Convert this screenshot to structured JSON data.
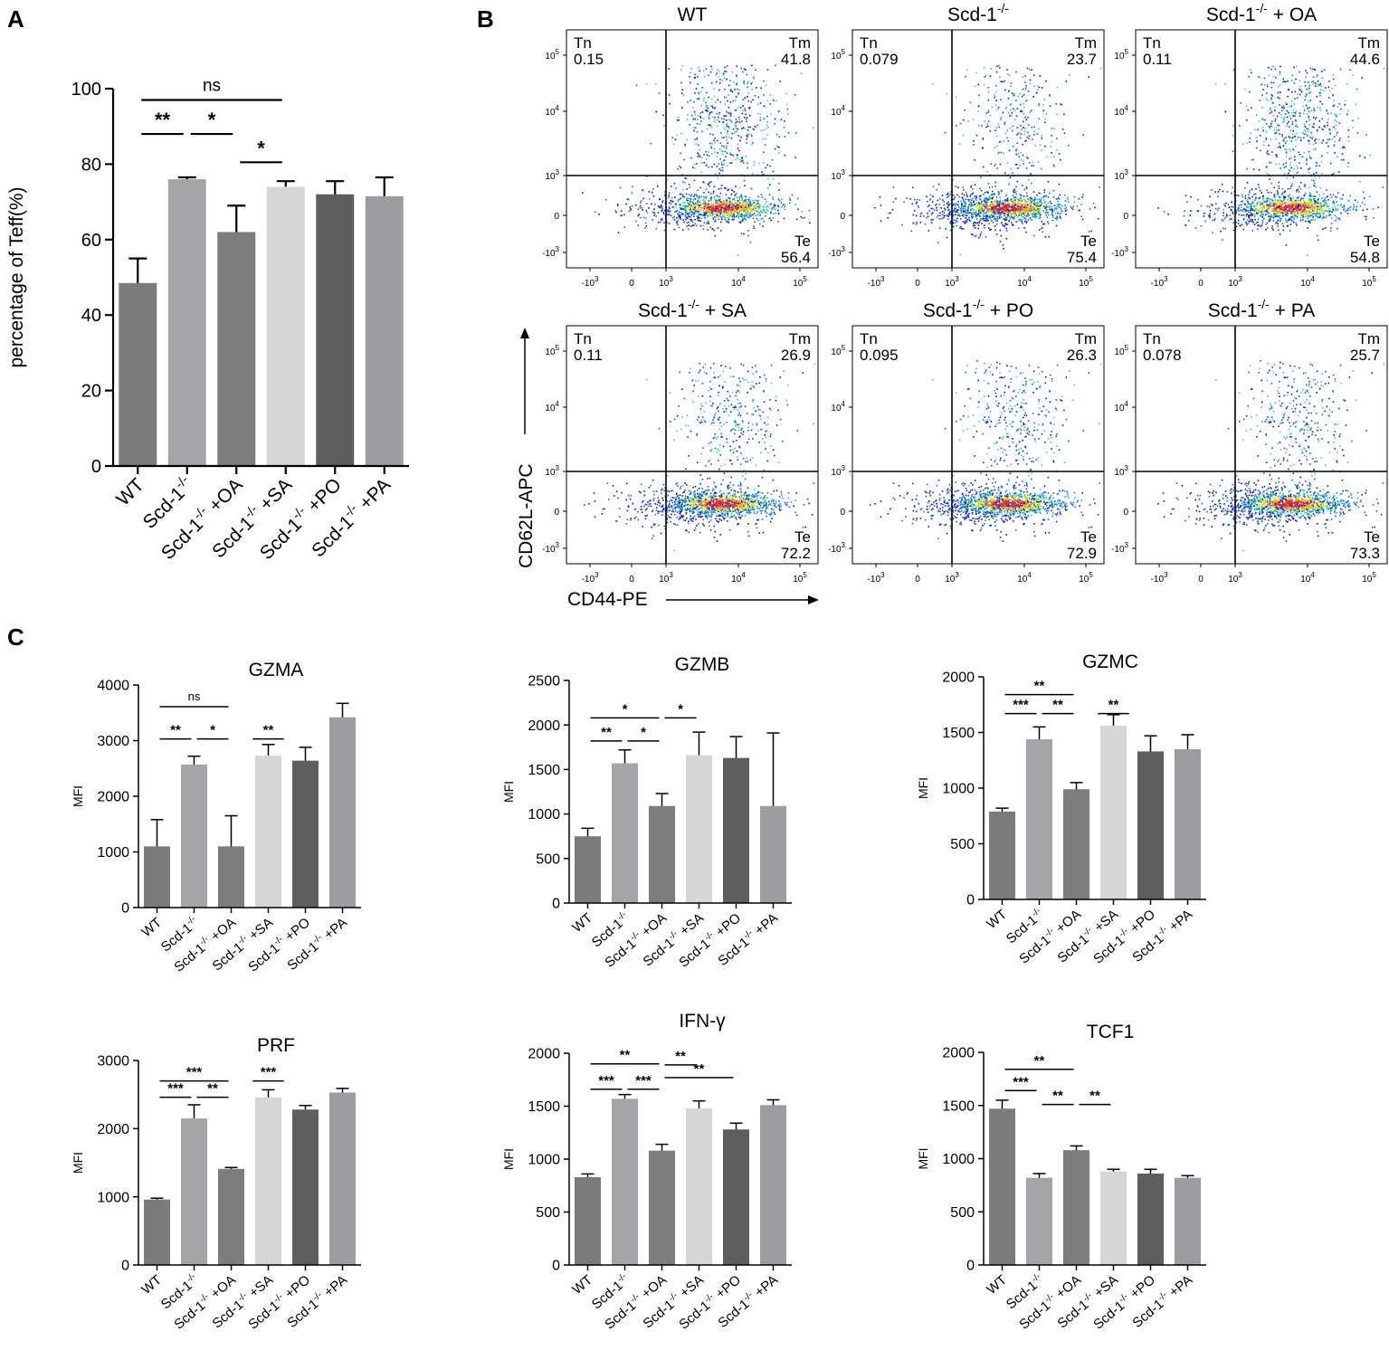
{
  "colors": {
    "wt": "#7b7b7b",
    "ko": "#a5a5a7",
    "oa": "#7d7d7d",
    "sa": "#d6d6d6",
    "po": "#5e5e5e",
    "pa": "#9d9da1",
    "axis": "#000000"
  },
  "panel_a": {
    "letter": "A",
    "chart_data": {
      "type": "bar",
      "title": "",
      "ylabel": "percentage of Teff(%)",
      "ylim": [
        0,
        100
      ],
      "yticks": [
        0,
        20,
        40,
        60,
        80,
        100
      ],
      "categories": [
        "WT",
        "Scd-1-/-",
        "Scd-1-/- +OA",
        "Scd-1-/- +SA",
        "Scd-1-/- +PO",
        "Scd-1-/- +PA"
      ],
      "values": [
        48.5,
        76,
        62,
        74,
        72,
        71.5
      ],
      "errors": [
        6.5,
        0.5,
        7,
        1.5,
        3.5,
        5
      ],
      "significance": [
        {
          "from": 0,
          "to": 3,
          "label": "ns",
          "y": 97
        },
        {
          "from": 0,
          "to": 1,
          "label": "**",
          "y": 88
        },
        {
          "from": 1,
          "to": 2,
          "label": "*",
          "y": 88
        },
        {
          "from": 2,
          "to": 3,
          "label": "*",
          "y": 80.5
        }
      ]
    }
  },
  "panel_b": {
    "letter": "B",
    "x_axis_label": "CD44-PE",
    "y_axis_label": "CD62L-APC",
    "y_tick_labels": [
      "10^5",
      "10^4",
      "10^3",
      "0",
      "-10^3"
    ],
    "x_tick_labels": [
      "-10^3",
      "0",
      "10^3",
      "10^4",
      "10^5"
    ],
    "plots": [
      {
        "title": "WT",
        "tn": "0.15",
        "tm": "41.8",
        "te": "56.4",
        "tn_label": "Tn",
        "tm_label": "Tm",
        "te_label": "Te"
      },
      {
        "title": "Scd-1-/-",
        "tn": "0.079",
        "tm": "23.7",
        "te": "75.4",
        "tn_label": "Tn",
        "tm_label": "Tm",
        "te_label": "Te"
      },
      {
        "title": "Scd-1-/- + OA",
        "tn": "0.11",
        "tm": "44.6",
        "te": "54.8",
        "tn_label": "Tn",
        "tm_label": "Tm",
        "te_label": "Te"
      },
      {
        "title": "Scd-1-/- + SA",
        "tn": "0.11",
        "tm": "26.9",
        "te": "72.2",
        "tn_label": "Tn",
        "tm_label": "Tm",
        "te_label": "Te"
      },
      {
        "title": "Scd-1-/- + PO",
        "tn": "0.095",
        "tm": "26.3",
        "te": "72.9",
        "tn_label": "Tn",
        "tm_label": "Tm",
        "te_label": "Te"
      },
      {
        "title": "Scd-1-/- + PA",
        "tn": "0.078",
        "tm": "25.7",
        "te": "73.3",
        "tn_label": "Tn",
        "tm_label": "Tm",
        "te_label": "Te"
      }
    ]
  },
  "panel_c": {
    "letter": "C",
    "chart_data": [
      {
        "type": "bar",
        "title": "GZMA",
        "ylabel": "MFI",
        "ylim": [
          0,
          4000
        ],
        "yticks": [
          0,
          1000,
          2000,
          3000,
          4000
        ],
        "categories": [
          "WT",
          "Scd-1-/-",
          "Scd-1-/- +OA",
          "Scd-1-/- +SA",
          "Scd-1-/- +PO",
          "Scd-1-/- +PA"
        ],
        "values": [
          1100,
          2570,
          1100,
          2730,
          2640,
          3420
        ],
        "errors": [
          480,
          150,
          550,
          200,
          240,
          250
        ],
        "significance": [
          {
            "from": 0,
            "to": 2,
            "label": "ns",
            "y": 3610
          },
          {
            "from": 0,
            "to": 1,
            "label": "**",
            "y": 3030
          },
          {
            "from": 1,
            "to": 2,
            "label": "*",
            "y": 3030
          },
          {
            "from": 3,
            "to": 3,
            "label": "**",
            "y": 3030
          }
        ]
      },
      {
        "type": "bar",
        "title": "GZMB",
        "ylabel": "MFI",
        "ylim": [
          0,
          2500
        ],
        "yticks": [
          0,
          500,
          1000,
          1500,
          2000,
          2500
        ],
        "categories": [
          "WT",
          "Scd-1-/-",
          "Scd-1-/- +OA",
          "Scd-1-/- +SA",
          "Scd-1-/- +PO",
          "Scd-1-/- +PA"
        ],
        "values": [
          750,
          1570,
          1090,
          1660,
          1630,
          1090
        ],
        "errors": [
          90,
          150,
          140,
          260,
          240,
          820
        ],
        "significance": [
          {
            "from": 0,
            "to": 2,
            "label": "*",
            "y": 2080
          },
          {
            "from": 0,
            "to": 1,
            "label": "**",
            "y": 1820
          },
          {
            "from": 1,
            "to": 2,
            "label": "*",
            "y": 1820
          },
          {
            "from": 2,
            "to": 3,
            "label": "*",
            "y": 2080
          }
        ]
      },
      {
        "type": "bar",
        "title": "GZMC",
        "ylabel": "MFI",
        "ylim": [
          0,
          2000
        ],
        "yticks": [
          0,
          500,
          1000,
          1500,
          2000
        ],
        "categories": [
          "WT",
          "Scd-1-/-",
          "Scd-1-/- +OA",
          "Scd-1-/- +SA",
          "Scd-1-/- +PO",
          "Scd-1-/- +PA"
        ],
        "values": [
          790,
          1440,
          990,
          1560,
          1330,
          1350
        ],
        "errors": [
          30,
          110,
          60,
          100,
          140,
          130
        ],
        "significance": [
          {
            "from": 0,
            "to": 2,
            "label": "**",
            "y": 1840
          },
          {
            "from": 0,
            "to": 1,
            "label": "***",
            "y": 1670
          },
          {
            "from": 1,
            "to": 2,
            "label": "**",
            "y": 1670
          },
          {
            "from": 3,
            "to": 3,
            "label": "**",
            "y": 1670
          }
        ]
      },
      {
        "type": "bar",
        "title": "PRF",
        "ylabel": "MFI",
        "ylim": [
          0,
          3000
        ],
        "yticks": [
          0,
          1000,
          2000,
          3000
        ],
        "categories": [
          "WT",
          "Scd-1-/-",
          "Scd-1-/- +OA",
          "Scd-1-/- +SA",
          "Scd-1-/- +PO",
          "Scd-1-/- +PA"
        ],
        "values": [
          960,
          2150,
          1410,
          2460,
          2280,
          2530
        ],
        "errors": [
          20,
          200,
          20,
          110,
          60,
          60
        ],
        "significance": [
          {
            "from": 0,
            "to": 2,
            "label": "***",
            "y": 2700
          },
          {
            "from": 0,
            "to": 1,
            "label": "***",
            "y": 2460
          },
          {
            "from": 1,
            "to": 2,
            "label": "**",
            "y": 2460
          },
          {
            "from": 3,
            "to": 3,
            "label": "***",
            "y": 2700
          }
        ]
      },
      {
        "type": "bar",
        "title": "IFN-γ",
        "ylabel": "MFI",
        "ylim": [
          0,
          2000
        ],
        "yticks": [
          0,
          500,
          1000,
          1500,
          2000
        ],
        "categories": [
          "WT",
          "Scd-1-/-",
          "Scd-1-/- +OA",
          "Scd-1-/- +SA",
          "Scd-1-/- +PO",
          "Scd-1-/- +PA"
        ],
        "values": [
          830,
          1570,
          1080,
          1480,
          1280,
          1510
        ],
        "errors": [
          30,
          40,
          60,
          70,
          60,
          50
        ],
        "significance": [
          {
            "from": 0,
            "to": 2,
            "label": "**",
            "y": 1900
          },
          {
            "from": 0,
            "to": 1,
            "label": "***",
            "y": 1660
          },
          {
            "from": 1,
            "to": 2,
            "label": "***",
            "y": 1660
          },
          {
            "from": 2,
            "to": 3,
            "label": "**",
            "y": 1890
          },
          {
            "from": 2,
            "to": 4,
            "label": "**",
            "y": 1770
          }
        ]
      },
      {
        "type": "bar",
        "title": "TCF1",
        "ylabel": "MFI",
        "ylim": [
          0,
          2000
        ],
        "yticks": [
          0,
          500,
          1000,
          1500,
          2000
        ],
        "categories": [
          "WT",
          "Scd-1-/-",
          "Scd-1-/- +OA",
          "Scd-1-/- +SA",
          "Scd-1-/- +PO",
          "Scd-1-/- +PA"
        ],
        "values": [
          1470,
          820,
          1080,
          880,
          860,
          820
        ],
        "errors": [
          80,
          40,
          40,
          20,
          40,
          20
        ],
        "significance": [
          {
            "from": 0,
            "to": 2,
            "label": "**",
            "y": 1840
          },
          {
            "from": 0,
            "to": 1,
            "label": "***",
            "y": 1640
          },
          {
            "from": 1,
            "to": 2,
            "label": "**",
            "y": 1510
          },
          {
            "from": 2,
            "to": 3,
            "label": "**",
            "y": 1510
          }
        ]
      }
    ]
  }
}
